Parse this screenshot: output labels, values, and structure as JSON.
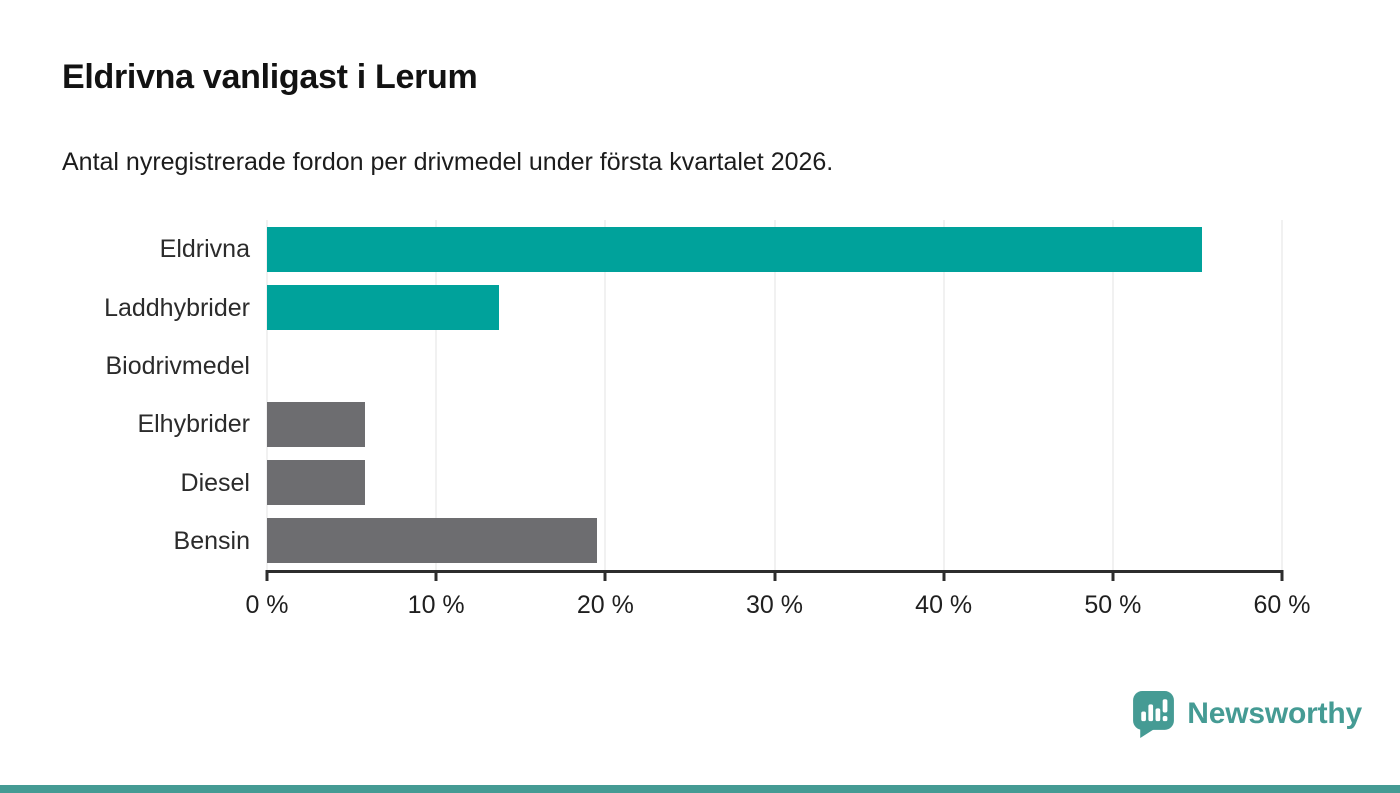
{
  "header": {
    "title": "Eldrivna vanligast i Lerum",
    "subtitle": "Antal nyregistrerade fordon per drivmedel under första kvartalet 2026."
  },
  "chart_data": {
    "type": "bar",
    "orientation": "horizontal",
    "categories": [
      "Eldrivna",
      "Laddhybrider",
      "Biodrivmedel",
      "Elhybrider",
      "Diesel",
      "Bensin"
    ],
    "values": [
      55.3,
      13.7,
      0,
      5.8,
      5.8,
      19.5
    ],
    "bar_colors": [
      "#00a29b",
      "#00a29b",
      "#00a29b",
      "#6d6d70",
      "#6d6d70",
      "#6d6d70"
    ],
    "unit": "%",
    "xlabel": "",
    "ylabel": "",
    "xlim": [
      0,
      60
    ],
    "x_tick_values": [
      0,
      10,
      20,
      30,
      40,
      50,
      60
    ],
    "x_tick_labels": [
      "0 %",
      "10 %",
      "20 %",
      "30 %",
      "40 %",
      "50 %",
      "60 %"
    ],
    "grid": true,
    "legend": false,
    "highlight_color": "#00a29b",
    "muted_color": "#6d6d70",
    "gridline_color": "#e3e3e3",
    "axis_color": "#2d2d2d"
  },
  "footer": {
    "brand": "Newsworthy",
    "logo_icon": "newsworthy-bubble-chart-icon",
    "brand_color": "#459b94",
    "accent_strip_color": "#459b94"
  }
}
